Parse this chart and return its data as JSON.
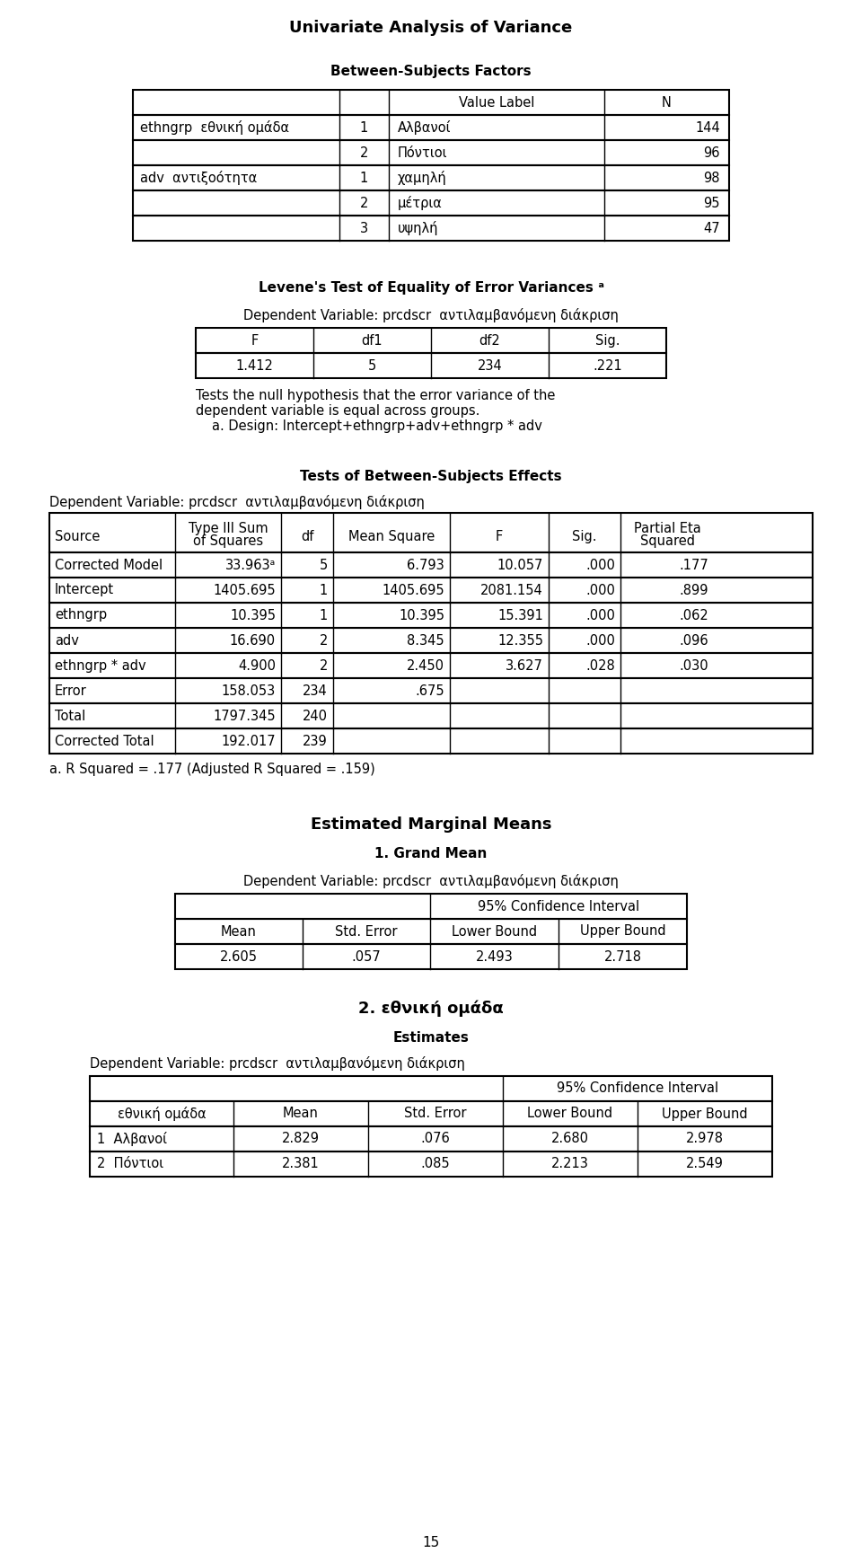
{
  "title": "Univariate Analysis of Variance",
  "bg_color": "#ffffff",
  "section1_title": "Between-Subjects Factors",
  "bsf_headers": [
    "",
    "",
    "Value Label",
    "N"
  ],
  "bsf_rows": [
    [
      "ethngrp  εθνική ομάδα",
      "1",
      "Αλβανοί",
      "144"
    ],
    [
      "",
      "2",
      "Πόντιοι",
      "96"
    ],
    [
      "adv  αντιξοότητα",
      "1",
      "χαμηλή",
      "98"
    ],
    [
      "",
      "2",
      "μέτρια",
      "95"
    ],
    [
      "",
      "3",
      "υψηλή",
      "47"
    ]
  ],
  "section2_title": "Levene's Test of Equality of Error Variances ᵃ",
  "levene_dep_var": "Dependent Variable: prcdscr  αντιλαμβανόμενη διάκριση",
  "levene_headers": [
    "F",
    "df1",
    "df2",
    "Sig."
  ],
  "levene_row": [
    "1.412",
    "5",
    "234",
    ".221"
  ],
  "levene_note1": "Tests the null hypothesis that the error variance of the",
  "levene_note2": "dependent variable is equal across groups.",
  "levene_note3": "a. Design: Intercept+ethngrp+adv+ethngrp * adv",
  "section3_title": "Tests of Between-Subjects Effects",
  "effects_dep_var": "Dependent Variable: prcdscr  αντιλαμβανόμενη διάκριση",
  "effects_headers": [
    "Source",
    "Type III Sum\nof Squares",
    "df",
    "Mean Square",
    "F",
    "Sig.",
    "Partial Eta\nSquared"
  ],
  "effects_rows": [
    [
      "Corrected Model",
      "33.963ᵃ",
      "5",
      "6.793",
      "10.057",
      ".000",
      ".177"
    ],
    [
      "Intercept",
      "1405.695",
      "1",
      "1405.695",
      "2081.154",
      ".000",
      ".899"
    ],
    [
      "ethngrp",
      "10.395",
      "1",
      "10.395",
      "15.391",
      ".000",
      ".062"
    ],
    [
      "adv",
      "16.690",
      "2",
      "8.345",
      "12.355",
      ".000",
      ".096"
    ],
    [
      "ethngrp * adv",
      "4.900",
      "2",
      "2.450",
      "3.627",
      ".028",
      ".030"
    ],
    [
      "Error",
      "158.053",
      "234",
      ".675",
      "",
      "",
      ""
    ],
    [
      "Total",
      "1797.345",
      "240",
      "",
      "",
      "",
      ""
    ],
    [
      "Corrected Total",
      "192.017",
      "239",
      "",
      "",
      "",
      ""
    ]
  ],
  "effects_note": "a. R Squared = .177 (Adjusted R Squared = .159)",
  "section4_title": "Estimated Marginal Means",
  "section4_sub": "1. Grand Mean",
  "grand_dep_var": "Dependent Variable: prcdscr  αντιλαμβανόμενη διάκριση",
  "grand_headers": [
    "Mean",
    "Std. Error",
    "Lower Bound",
    "Upper Bound"
  ],
  "grand_row": [
    "2.605",
    ".057",
    "2.493",
    "2.718"
  ],
  "section5_title": "2. εθνική ομάδα",
  "estimates_title": "Estimates",
  "estimates_dep_var": "Dependent Variable: prcdscr  αντιλαμβανόμενη διάκριση",
  "estimates_headers": [
    "εθνική ομάδα",
    "Mean",
    "Std. Error",
    "Lower Bound",
    "Upper Bound"
  ],
  "estimates_rows": [
    [
      "1  Αλβανοί",
      "2.829",
      ".076",
      "2.680",
      "2.978"
    ],
    [
      "2  Πόντιοι",
      "2.381",
      ".085",
      "2.213",
      "2.549"
    ]
  ],
  "page_number": "15"
}
